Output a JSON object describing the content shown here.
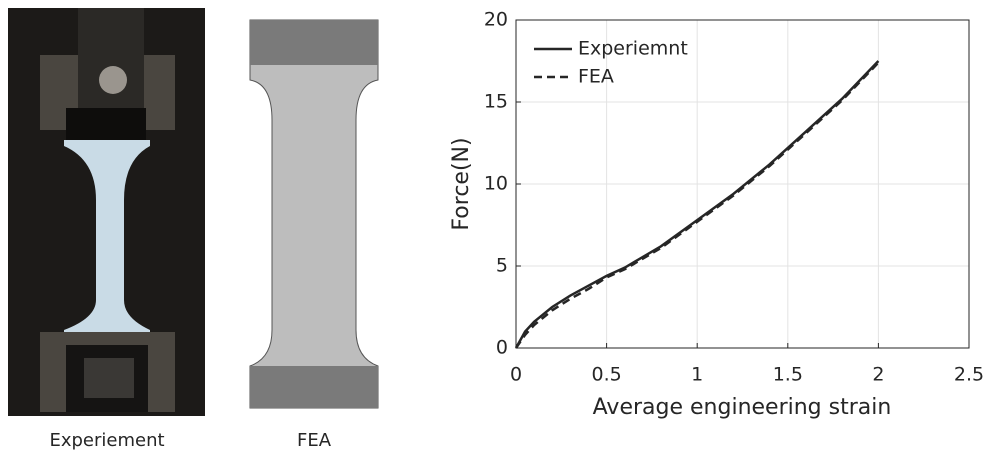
{
  "captions": {
    "photo": "Experiement",
    "fea": "FEA"
  },
  "chart_data": {
    "type": "line",
    "xlabel": "Average engineering strain",
    "ylabel": "Force(N)",
    "x": [
      0,
      0.05,
      0.1,
      0.2,
      0.3,
      0.4,
      0.5,
      0.6,
      0.8,
      1.0,
      1.2,
      1.4,
      1.5,
      1.6,
      1.8,
      2.0
    ],
    "series": [
      {
        "name": "Experiemnt",
        "color": "#262626",
        "dash": false,
        "values": [
          0,
          1.0,
          1.6,
          2.5,
          3.2,
          3.8,
          4.4,
          4.9,
          6.2,
          7.8,
          9.4,
          11.2,
          12.2,
          13.2,
          15.2,
          17.5
        ]
      },
      {
        "name": "FEA",
        "color": "#262626",
        "dash": true,
        "values": [
          0,
          0.8,
          1.4,
          2.3,
          3.0,
          3.6,
          4.3,
          4.8,
          6.1,
          7.7,
          9.3,
          11.1,
          12.1,
          13.1,
          15.1,
          17.4
        ]
      }
    ],
    "xlim": [
      0,
      2.5
    ],
    "xticks": [
      0,
      0.5,
      1,
      1.5,
      2,
      2.5
    ],
    "ylim": [
      0,
      20
    ],
    "yticks": [
      0,
      5,
      10,
      15,
      20
    ],
    "grid": true,
    "legend": "upper-left"
  }
}
